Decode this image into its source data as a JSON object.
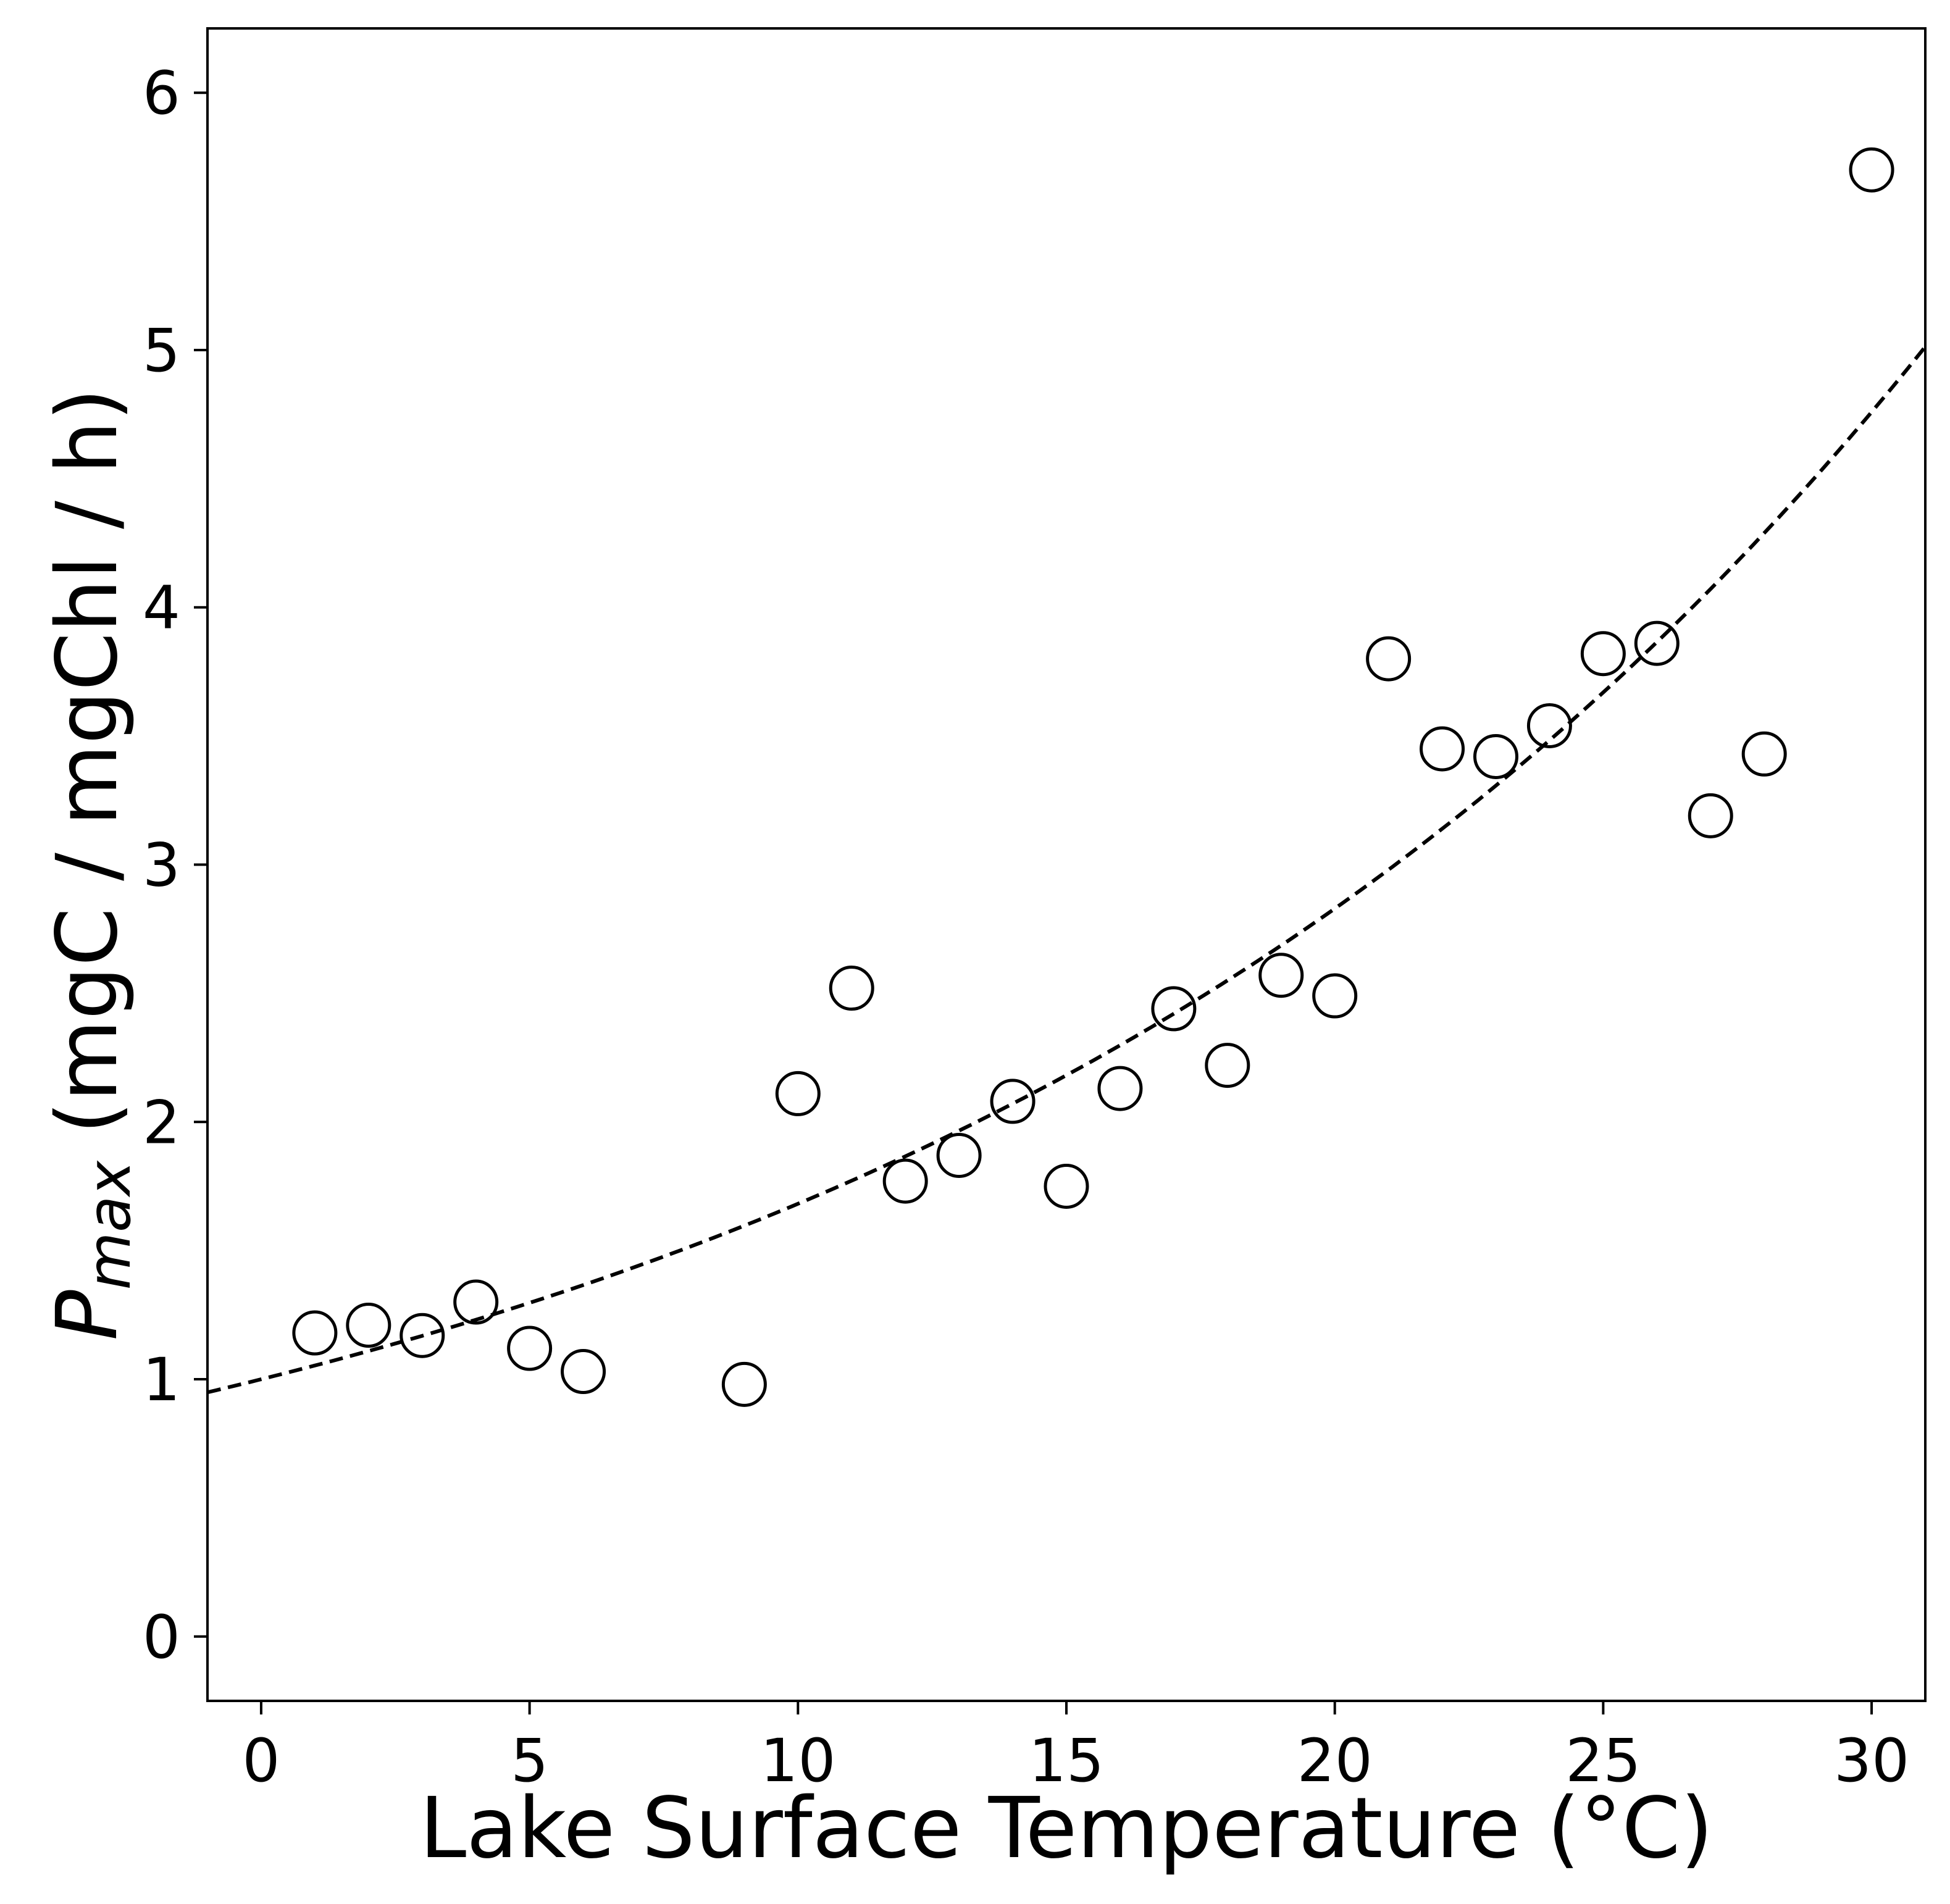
{
  "chart_data": {
    "type": "scatter",
    "title": "",
    "xlabel": "Lake Surface Temperature (°C)",
    "ylabel": {
      "symbol": "P",
      "subscript": "max",
      "units": " (mgC / mgChl / h)"
    },
    "xlim": [
      -1,
      31
    ],
    "ylim": [
      -0.25,
      6.25
    ],
    "x_ticks": [
      0,
      5,
      10,
      15,
      20,
      25,
      30
    ],
    "y_ticks": [
      0,
      1,
      2,
      3,
      4,
      5,
      6
    ],
    "grid": false,
    "legend": "none",
    "series": [
      {
        "marker": "open-circle",
        "color": "#000000",
        "points": [
          {
            "x": 1,
            "y": 1.18
          },
          {
            "x": 2,
            "y": 1.21
          },
          {
            "x": 3,
            "y": 1.17
          },
          {
            "x": 4,
            "y": 1.3
          },
          {
            "x": 5,
            "y": 1.12
          },
          {
            "x": 6,
            "y": 1.03
          },
          {
            "x": 9,
            "y": 0.98
          },
          {
            "x": 10,
            "y": 2.11
          },
          {
            "x": 11,
            "y": 2.52
          },
          {
            "x": 12,
            "y": 1.77
          },
          {
            "x": 13,
            "y": 1.87
          },
          {
            "x": 14,
            "y": 2.08
          },
          {
            "x": 15,
            "y": 1.75
          },
          {
            "x": 16,
            "y": 2.13
          },
          {
            "x": 17,
            "y": 2.44
          },
          {
            "x": 18,
            "y": 2.22
          },
          {
            "x": 19,
            "y": 2.57
          },
          {
            "x": 20,
            "y": 2.49
          },
          {
            "x": 21,
            "y": 3.8
          },
          {
            "x": 22,
            "y": 3.45
          },
          {
            "x": 23,
            "y": 3.42
          },
          {
            "x": 24,
            "y": 3.54
          },
          {
            "x": 25,
            "y": 3.82
          },
          {
            "x": 26,
            "y": 3.86
          },
          {
            "x": 27,
            "y": 3.19
          },
          {
            "x": 28,
            "y": 3.43
          },
          {
            "x": 30,
            "y": 5.7
          }
        ]
      }
    ],
    "fit": {
      "style": "dashed",
      "color": "#000000",
      "model": "exponential",
      "a": 1.0,
      "b": 0.052
    }
  }
}
